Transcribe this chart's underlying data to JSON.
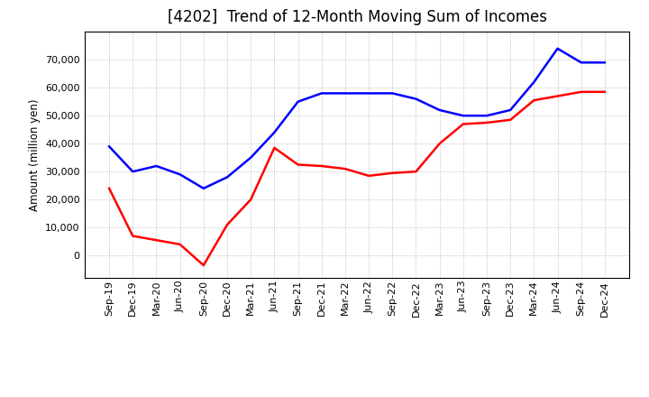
{
  "title": "[4202]  Trend of 12-Month Moving Sum of Incomes",
  "ylabel": "Amount (million yen)",
  "labels": [
    "Sep-19",
    "Dec-19",
    "Mar-20",
    "Jun-20",
    "Sep-20",
    "Dec-20",
    "Mar-21",
    "Jun-21",
    "Sep-21",
    "Dec-21",
    "Mar-22",
    "Jun-22",
    "Sep-22",
    "Dec-22",
    "Mar-23",
    "Jun-23",
    "Sep-23",
    "Dec-23",
    "Mar-24",
    "Jun-24",
    "Sep-24",
    "Dec-24"
  ],
  "ordinary_income_full": [
    39000,
    30000,
    32000,
    29000,
    24000,
    28000,
    35000,
    44000,
    55000,
    58000,
    58000,
    58000,
    58000,
    56000,
    52000,
    50000,
    50000,
    52000,
    62000,
    74000,
    69000,
    69000
  ],
  "net_income_full": [
    24000,
    7000,
    5500,
    4000,
    -3500,
    11000,
    20000,
    38500,
    32500,
    32000,
    31000,
    28500,
    29500,
    30000,
    40000,
    47000,
    47500,
    48500,
    55500,
    57000,
    58500,
    58500
  ],
  "ordinary_color": "#0000FF",
  "net_color": "#FF0000",
  "background_color": "#FFFFFF",
  "grid_color": "#999999",
  "ylim": [
    -8000,
    80000
  ],
  "yticks": [
    0,
    10000,
    20000,
    30000,
    40000,
    50000,
    60000,
    70000
  ],
  "title_fontsize": 12,
  "axis_fontsize": 8
}
